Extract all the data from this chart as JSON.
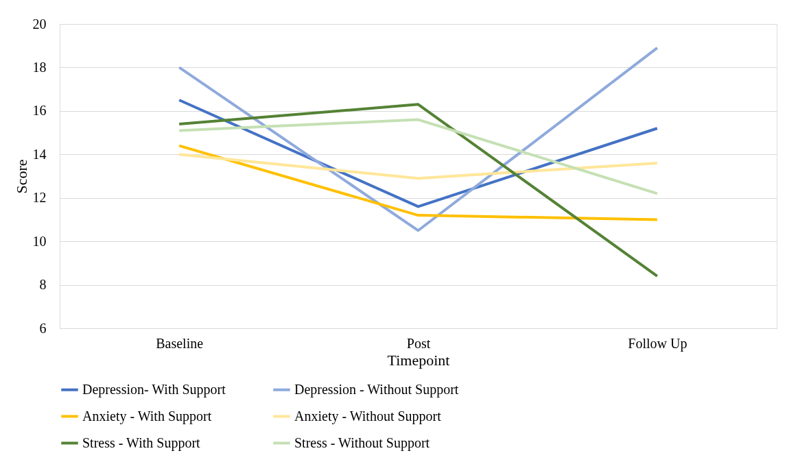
{
  "chart_data": {
    "type": "line",
    "xlabel": "Timepoint",
    "ylabel": "Score",
    "categories": [
      "Baseline",
      "Post",
      "Follow Up"
    ],
    "ylim": [
      6,
      20
    ],
    "yticks": [
      6,
      8,
      10,
      12,
      14,
      16,
      18,
      20
    ],
    "grid": "y",
    "legend": "bottom",
    "marker": "none",
    "line_style": "solid",
    "series": [
      {
        "name": "Depression- With Support",
        "color": "#4472c4",
        "values": [
          16.5,
          11.6,
          15.2
        ]
      },
      {
        "name": "Depression - Without Support",
        "color": "#8faadc",
        "values": [
          18.0,
          10.5,
          18.9
        ]
      },
      {
        "name": "Anxiety - With Support",
        "color": "#ffc000",
        "values": [
          14.4,
          11.2,
          11.0
        ]
      },
      {
        "name": "Anxiety - Without Support",
        "color": "#ffe699",
        "values": [
          14.0,
          12.9,
          13.6
        ]
      },
      {
        "name": "Stress - With Support",
        "color": "#548235",
        "values": [
          15.4,
          16.3,
          8.4
        ]
      },
      {
        "name": "Stress - Without Support",
        "color": "#c5e0b4",
        "values": [
          15.1,
          15.6,
          12.2
        ]
      }
    ]
  }
}
